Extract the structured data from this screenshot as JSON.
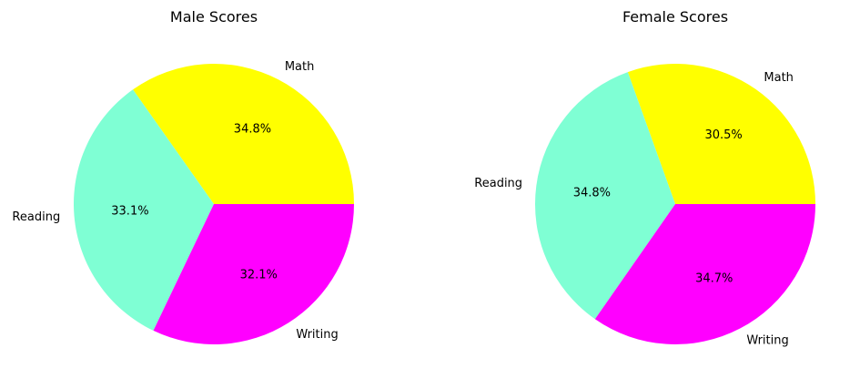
{
  "chart_data": [
    {
      "type": "pie",
      "title": "Male Scores",
      "categories": [
        "Math",
        "Reading",
        "Writing"
      ],
      "values": [
        34.8,
        33.1,
        32.1
      ],
      "percent_labels": [
        "34.8%",
        "33.1%",
        "32.1%"
      ],
      "colors": [
        "#ffff00",
        "#7fffd4",
        "#ff00ff"
      ],
      "start_angle": 0,
      "direction": "counterclockwise",
      "legend": "none"
    },
    {
      "type": "pie",
      "title": "Female Scores",
      "categories": [
        "Math",
        "Reading",
        "Writing"
      ],
      "values": [
        30.5,
        34.8,
        34.7
      ],
      "percent_labels": [
        "30.5%",
        "34.8%",
        "34.7%"
      ],
      "colors": [
        "#ffff00",
        "#7fffd4",
        "#ff00ff"
      ],
      "start_angle": 0,
      "direction": "counterclockwise",
      "legend": "none"
    }
  ]
}
